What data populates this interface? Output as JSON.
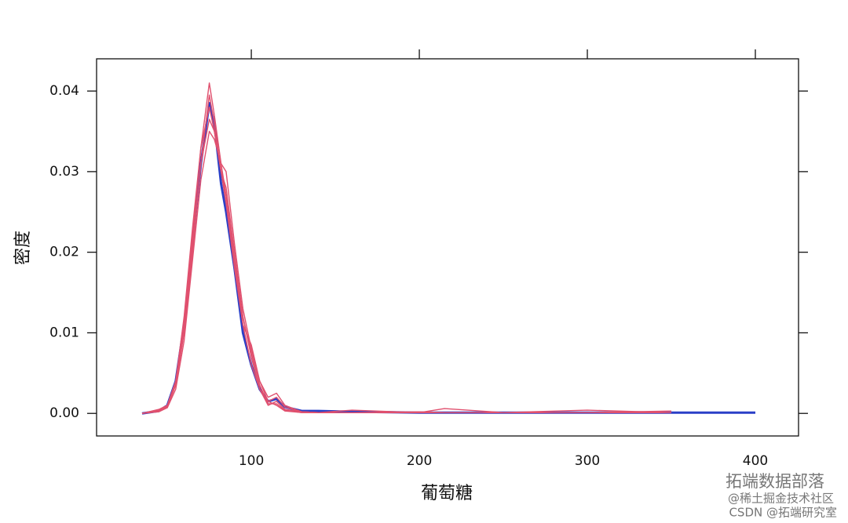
{
  "chart_data": {
    "type": "line",
    "x_label": "葡萄糖",
    "y_label": "密度",
    "x": [
      35,
      45,
      50,
      55,
      60,
      65,
      70,
      75,
      78,
      82,
      85,
      90,
      95,
      100,
      105,
      110,
      115,
      120,
      130,
      140,
      160,
      200,
      215,
      250,
      300,
      350,
      400
    ],
    "series": [
      {
        "color": "#2a3fc7",
        "values": [
          0,
          0.0003,
          0.001,
          0.004,
          0.011,
          0.021,
          0.031,
          0.0385,
          0.036,
          0.0285,
          0.025,
          0.018,
          0.01,
          0.006,
          0.003,
          0.0015,
          0.0018,
          0.0008,
          0.0003,
          0.0003,
          0.0002,
          0.0001,
          0.0001,
          0.0001,
          0.0001,
          0.0001,
          0.0001
        ]
      },
      {
        "color": "#e0506e",
        "values": [
          0,
          0.0005,
          0.001,
          0.004,
          0.011,
          0.022,
          0.033,
          0.041,
          0.037,
          0.031,
          0.027,
          0.019,
          0.011,
          0.006,
          0.003,
          0.0015,
          0.002,
          0.0008,
          0.0002,
          0.0001,
          0.0004,
          0.0001,
          0.0006,
          0.0001,
          0.0001,
          0.0003,
          null
        ]
      },
      {
        "color": "#e0506e",
        "values": [
          0,
          0.0003,
          0.0008,
          0.0035,
          0.01,
          0.02,
          0.031,
          0.0395,
          0.036,
          0.03,
          0.028,
          0.02,
          0.012,
          0.007,
          0.003,
          0.001,
          0.0015,
          0.0005,
          0.0002,
          0.0001,
          0.0001,
          0.0002,
          0.0001,
          0.0001,
          0.0004,
          0.0001,
          null
        ]
      },
      {
        "color": "#e0506e",
        "values": [
          0,
          0.0002,
          0.0007,
          0.003,
          0.009,
          0.019,
          0.029,
          0.035,
          0.034,
          0.031,
          0.03,
          0.021,
          0.013,
          0.008,
          0.004,
          0.002,
          0.0025,
          0.001,
          0.0002,
          0.0001,
          0.0001,
          0.0001,
          0.0001,
          0.0001,
          0.0001,
          0.0001,
          null
        ]
      },
      {
        "color": "#e0506e",
        "values": [
          0,
          0.0004,
          0.001,
          0.004,
          0.012,
          0.023,
          0.033,
          0.038,
          0.035,
          0.03,
          0.026,
          0.018,
          0.011,
          0.0085,
          0.004,
          0.0015,
          0.001,
          0.0003,
          0.0001,
          0.0001,
          0.0001,
          0.0001,
          0.0001,
          0.0001,
          0.0001,
          0.0001,
          null
        ]
      },
      {
        "color": "#e0506e",
        "values": [
          0,
          0.0003,
          0.0009,
          0.0038,
          0.0105,
          0.021,
          0.031,
          0.0365,
          0.035,
          0.03,
          0.027,
          0.019,
          0.012,
          0.0075,
          0.0035,
          0.0012,
          0.0012,
          0.0004,
          0.0001,
          0.0001,
          0.0001,
          0.0001,
          0.0001,
          0.0001,
          0.0001,
          0.0001,
          null
        ]
      }
    ],
    "xlim": [
      7.9,
      425.7
    ],
    "xticks": [
      100,
      200,
      300,
      400
    ],
    "ylim": [
      -0.0028,
      0.044
    ],
    "yticks": [
      {
        "value": 0,
        "label": "0.00"
      },
      0.01,
      0.02,
      0.03,
      0.04
    ],
    "watermarks": [
      "拓端数据部落",
      "@稀土掘金技术社区",
      "CSDN @拓端研究室"
    ]
  }
}
